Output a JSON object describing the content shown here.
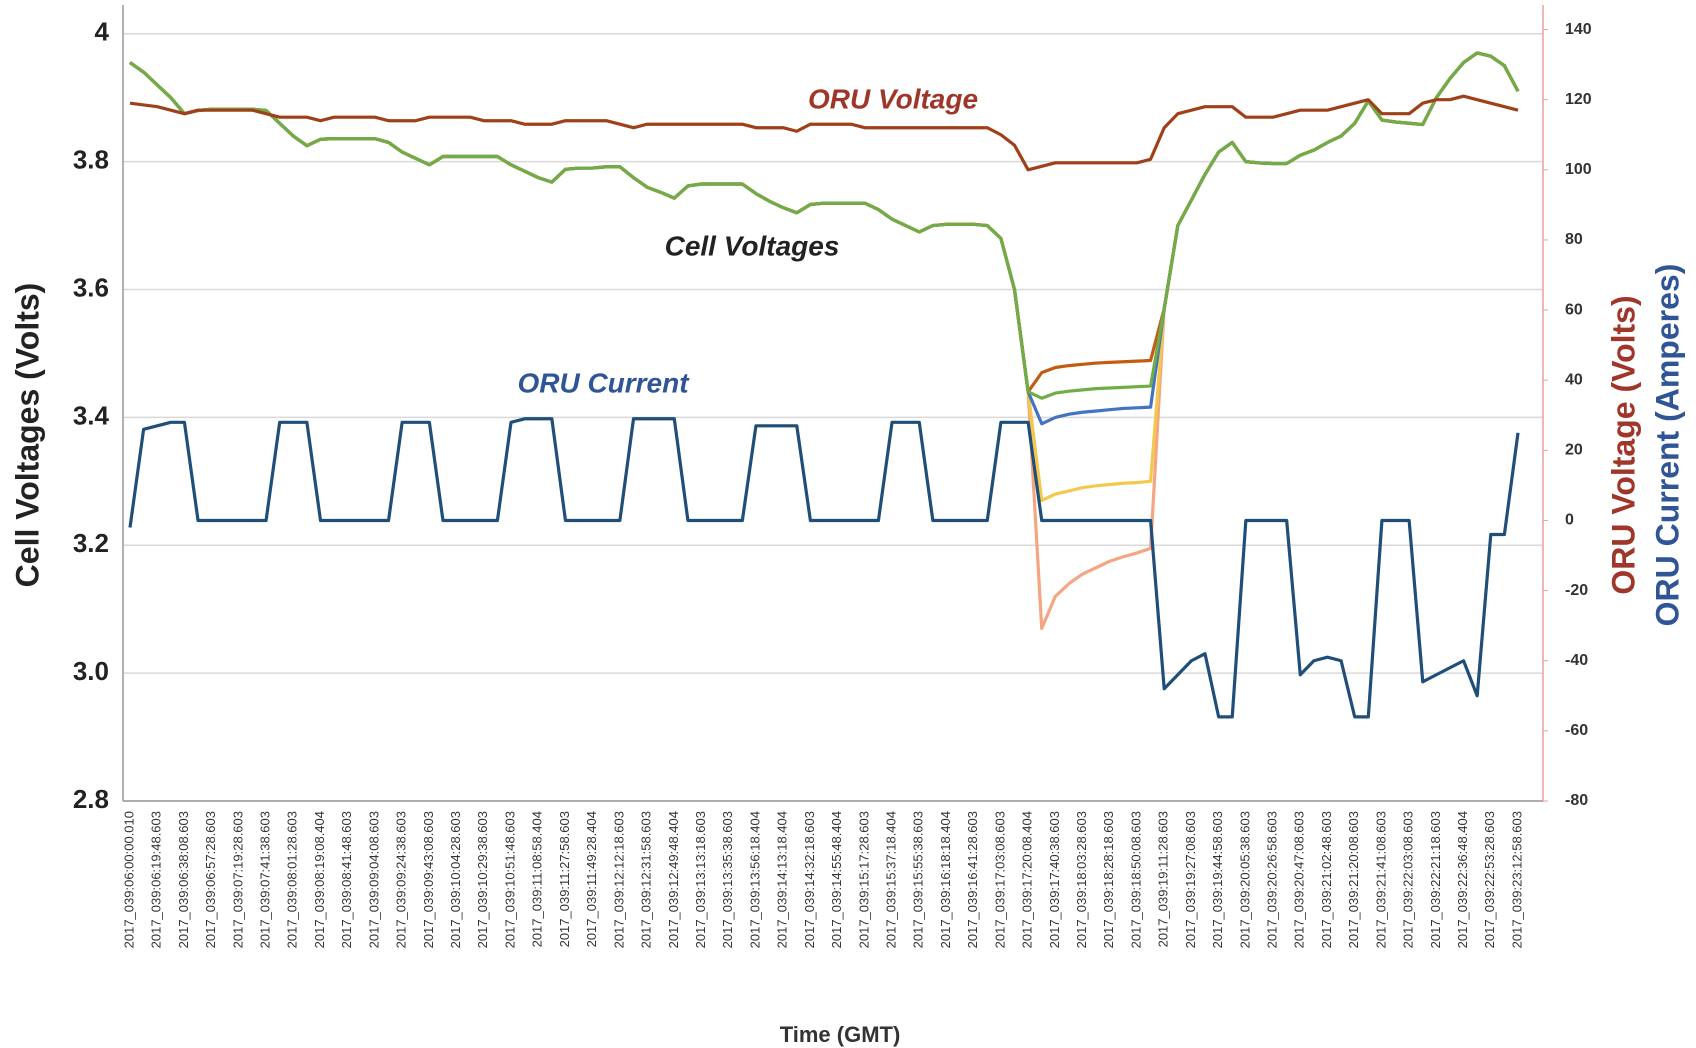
{
  "chart_data": {
    "type": "line",
    "x_label": "Time (GMT)",
    "y_label": "Cell Voltages (Volts)",
    "y2_labels": [
      "ORU Voltage (Volts)",
      "ORU Current (Amperes)"
    ],
    "annotations": [
      "ORU Voltage",
      "Cell Voltages",
      "ORU Current"
    ],
    "grid": true,
    "ylim": [
      2.8,
      4.045
    ],
    "yticks": [
      2.8,
      {
        "value": 3,
        "label": "3.0"
      },
      3.2,
      3.4,
      3.6,
      3.8,
      4
    ],
    "y2lim": [
      -80,
      147
    ],
    "y2ticks": [
      -80,
      -60,
      -40,
      -20,
      0,
      20,
      40,
      60,
      80,
      100,
      120,
      140
    ],
    "categories": [
      "2017_039:06:00:00.010",
      null,
      "2017_039:06:19:48.603",
      null,
      "2017_039:06:38:08.603",
      null,
      "2017_039:06:57:28.603",
      null,
      "2017_039:07:19:28.603",
      null,
      "2017_039:07:41:38.603",
      null,
      "2017_039:08:01:28.603",
      null,
      "2017_039:08:19:08.404",
      null,
      "2017_039:08:41:48.603",
      null,
      "2017_039:09:04:08.603",
      null,
      "2017_039:09:24:38.603",
      null,
      "2017_039:09:43:08.603",
      null,
      "2017_039:10:04:28.603",
      null,
      "2017_039:10:29:38.603",
      null,
      "2017_039:10:51:48.603",
      null,
      "2017_039:11:08:58.404",
      null,
      "2017_039:11:27:58.603",
      null,
      "2017_039:11:49:28.404",
      null,
      "2017_039:12:12:18.603",
      null,
      "2017_039:12:31:58.603",
      null,
      "2017_039:12:49:48.404",
      null,
      "2017_039:13:13:18.603",
      null,
      "2017_039:13:35:38.603",
      null,
      "2017_039:13:56:18.404",
      null,
      "2017_039:14:13:18.404",
      null,
      "2017_039:14:32:18.603",
      null,
      "2017_039:14:55:48.404",
      null,
      "2017_039:15:17:28.603",
      null,
      "2017_039:15:37:18.404",
      null,
      "2017_039:15:55:38.603",
      null,
      "2017_039:16:18:18.404",
      null,
      "2017_039:16:41:28.603",
      null,
      "2017_039:17:03:08.603",
      null,
      "2017_039:17:20:08.404",
      null,
      "2017_039:17:40:38.603",
      null,
      "2017_039:18:03:28.603",
      null,
      "2017_039:18:28:18.603",
      null,
      "2017_039:18:50:08.603",
      null,
      "2017_039:19:11:28.603",
      null,
      "2017_039:19:27:08.603",
      null,
      "2017_039:19:44:58.603",
      null,
      "2017_039:20:05:38.603",
      null,
      "2017_039:20:26:58.603",
      null,
      "2017_039:20:47:08.603",
      null,
      "2017_039:21:02:48.603",
      null,
      "2017_039:21:20:08.603",
      null,
      "2017_039:21:41:08.603",
      null,
      "2017_039:22:03:08.603",
      null,
      "2017_039:22:21:18.603",
      null,
      "2017_039:22:36:48.404",
      null,
      "2017_039:22:53:28.603",
      null,
      "2017_039:23:12:58.603"
    ],
    "series": [
      {
        "color": "#f4a582",
        "values": [
          3.955,
          3.94,
          3.92,
          3.9,
          3.875,
          3.88,
          3.882,
          3.882,
          3.882,
          3.882,
          3.88,
          3.86,
          3.84,
          3.825,
          3.835,
          3.836,
          3.836,
          3.836,
          3.836,
          3.83,
          3.815,
          3.805,
          3.795,
          3.808,
          3.808,
          3.808,
          3.808,
          3.808,
          3.795,
          3.785,
          3.775,
          3.768,
          3.788,
          3.79,
          3.79,
          3.792,
          3.792,
          3.775,
          3.76,
          3.752,
          3.743,
          3.762,
          3.765,
          3.765,
          3.765,
          3.765,
          3.75,
          3.738,
          3.728,
          3.72,
          3.733,
          3.735,
          3.735,
          3.735,
          3.735,
          3.725,
          3.71,
          3.7,
          3.69,
          3.7,
          3.702,
          3.702,
          3.702,
          3.7,
          3.68,
          3.6,
          3.44,
          3.07,
          3.12,
          3.14,
          3.155,
          3.165,
          3.175,
          3.182,
          3.188,
          3.195,
          3.57,
          3.7,
          3.74,
          3.78,
          3.815,
          3.83,
          3.8,
          3.798,
          3.797,
          3.797,
          3.81,
          3.818,
          3.83,
          3.84,
          3.86,
          3.895,
          3.865,
          3.862,
          3.86,
          3.858,
          3.9,
          3.93,
          3.955,
          3.97,
          3.965,
          3.95,
          3.91
        ]
      },
      {
        "color": "#f2c94c",
        "values": [
          3.955,
          3.94,
          3.92,
          3.9,
          3.875,
          3.88,
          3.882,
          3.882,
          3.882,
          3.882,
          3.88,
          3.86,
          3.84,
          3.825,
          3.835,
          3.836,
          3.836,
          3.836,
          3.836,
          3.83,
          3.815,
          3.805,
          3.795,
          3.808,
          3.808,
          3.808,
          3.808,
          3.808,
          3.795,
          3.785,
          3.775,
          3.768,
          3.788,
          3.79,
          3.79,
          3.792,
          3.792,
          3.775,
          3.76,
          3.752,
          3.743,
          3.762,
          3.765,
          3.765,
          3.765,
          3.765,
          3.75,
          3.738,
          3.728,
          3.72,
          3.733,
          3.735,
          3.735,
          3.735,
          3.735,
          3.725,
          3.71,
          3.7,
          3.69,
          3.7,
          3.702,
          3.702,
          3.702,
          3.7,
          3.68,
          3.6,
          3.44,
          3.27,
          3.28,
          3.285,
          3.29,
          3.293,
          3.295,
          3.297,
          3.298,
          3.3,
          3.57,
          3.7,
          3.74,
          3.78,
          3.815,
          3.83,
          3.8,
          3.798,
          3.797,
          3.797,
          3.81,
          3.818,
          3.83,
          3.84,
          3.86,
          3.895,
          3.865,
          3.862,
          3.86,
          3.858,
          3.9,
          3.93,
          3.955,
          3.97,
          3.965,
          3.95,
          3.91
        ]
      },
      {
        "color": "#4472c4",
        "values": [
          3.955,
          3.94,
          3.92,
          3.9,
          3.875,
          3.88,
          3.882,
          3.882,
          3.882,
          3.882,
          3.88,
          3.86,
          3.84,
          3.825,
          3.835,
          3.836,
          3.836,
          3.836,
          3.836,
          3.83,
          3.815,
          3.805,
          3.795,
          3.808,
          3.808,
          3.808,
          3.808,
          3.808,
          3.795,
          3.785,
          3.775,
          3.768,
          3.788,
          3.79,
          3.79,
          3.792,
          3.792,
          3.775,
          3.76,
          3.752,
          3.743,
          3.762,
          3.765,
          3.765,
          3.765,
          3.765,
          3.75,
          3.738,
          3.728,
          3.72,
          3.733,
          3.735,
          3.735,
          3.735,
          3.735,
          3.725,
          3.71,
          3.7,
          3.69,
          3.7,
          3.702,
          3.702,
          3.702,
          3.7,
          3.68,
          3.6,
          3.44,
          3.39,
          3.4,
          3.405,
          3.408,
          3.41,
          3.412,
          3.414,
          3.415,
          3.416,
          3.57,
          3.7,
          3.74,
          3.78,
          3.815,
          3.83,
          3.8,
          3.798,
          3.797,
          3.797,
          3.81,
          3.818,
          3.83,
          3.84,
          3.86,
          3.895,
          3.865,
          3.862,
          3.86,
          3.858,
          3.9,
          3.93,
          3.955,
          3.97,
          3.965,
          3.95,
          3.91
        ]
      },
      {
        "color": "#c55a11",
        "values": [
          3.955,
          3.94,
          3.92,
          3.9,
          3.875,
          3.88,
          3.882,
          3.882,
          3.882,
          3.882,
          3.88,
          3.86,
          3.84,
          3.825,
          3.835,
          3.836,
          3.836,
          3.836,
          3.836,
          3.83,
          3.815,
          3.805,
          3.795,
          3.808,
          3.808,
          3.808,
          3.808,
          3.808,
          3.795,
          3.785,
          3.775,
          3.768,
          3.788,
          3.79,
          3.79,
          3.792,
          3.792,
          3.775,
          3.76,
          3.752,
          3.743,
          3.762,
          3.765,
          3.765,
          3.765,
          3.765,
          3.75,
          3.738,
          3.728,
          3.72,
          3.733,
          3.735,
          3.735,
          3.735,
          3.735,
          3.725,
          3.71,
          3.7,
          3.69,
          3.7,
          3.702,
          3.702,
          3.702,
          3.7,
          3.68,
          3.6,
          3.44,
          3.47,
          3.478,
          3.481,
          3.483,
          3.485,
          3.486,
          3.487,
          3.488,
          3.489,
          3.57,
          3.7,
          3.74,
          3.78,
          3.815,
          3.83,
          3.8,
          3.798,
          3.797,
          3.797,
          3.81,
          3.818,
          3.83,
          3.84,
          3.86,
          3.895,
          3.865,
          3.862,
          3.86,
          3.858,
          3.9,
          3.93,
          3.955,
          3.97,
          3.965,
          3.95,
          3.91
        ]
      },
      {
        "color": "#70ad47",
        "values": [
          3.955,
          3.94,
          3.92,
          3.9,
          3.875,
          3.88,
          3.882,
          3.882,
          3.882,
          3.882,
          3.88,
          3.86,
          3.84,
          3.825,
          3.835,
          3.836,
          3.836,
          3.836,
          3.836,
          3.83,
          3.815,
          3.805,
          3.795,
          3.808,
          3.808,
          3.808,
          3.808,
          3.808,
          3.795,
          3.785,
          3.775,
          3.768,
          3.788,
          3.79,
          3.79,
          3.792,
          3.792,
          3.775,
          3.76,
          3.752,
          3.743,
          3.762,
          3.765,
          3.765,
          3.765,
          3.765,
          3.75,
          3.738,
          3.728,
          3.72,
          3.733,
          3.735,
          3.735,
          3.735,
          3.735,
          3.725,
          3.71,
          3.7,
          3.69,
          3.7,
          3.702,
          3.702,
          3.702,
          3.7,
          3.68,
          3.6,
          3.44,
          3.43,
          3.438,
          3.441,
          3.443,
          3.445,
          3.446,
          3.447,
          3.448,
          3.449,
          3.57,
          3.7,
          3.74,
          3.78,
          3.815,
          3.83,
          3.8,
          3.798,
          3.797,
          3.797,
          3.81,
          3.818,
          3.83,
          3.84,
          3.86,
          3.895,
          3.865,
          3.862,
          3.86,
          3.858,
          3.9,
          3.93,
          3.955,
          3.97,
          3.965,
          3.95,
          3.91
        ]
      },
      {
        "name": "ORU Voltage",
        "axis": "y2",
        "color": "#a0401a",
        "values": [
          119,
          118.5,
          118,
          117,
          116,
          117,
          117,
          117,
          117,
          117,
          116,
          115,
          115,
          115,
          114,
          115,
          115,
          115,
          115,
          114,
          114,
          114,
          115,
          115,
          115,
          115,
          114,
          114,
          114,
          113,
          113,
          113,
          114,
          114,
          114,
          114,
          113,
          112,
          113,
          113,
          113,
          113,
          113,
          113,
          113,
          113,
          112,
          112,
          112,
          111,
          113,
          113,
          113,
          113,
          112,
          112,
          112,
          112,
          112,
          112,
          112,
          112,
          112,
          112,
          110,
          107,
          100,
          101,
          102,
          102,
          102,
          102,
          102,
          102,
          102,
          103,
          112,
          116,
          117,
          118,
          118,
          118,
          115,
          115,
          115,
          116,
          117,
          117,
          117,
          118,
          119,
          120,
          116,
          116,
          116,
          119,
          120,
          120,
          121,
          120,
          119,
          118,
          117
        ]
      },
      {
        "name": "ORU Current",
        "axis": "y2",
        "color": "#1f4e79",
        "values": [
          -2,
          26,
          27,
          28,
          28,
          0,
          0,
          0,
          0,
          0,
          0,
          28,
          28,
          28,
          0,
          0,
          0,
          0,
          0,
          0,
          28,
          28,
          28,
          0,
          0,
          0,
          0,
          0,
          28,
          29,
          29,
          29,
          0,
          0,
          0,
          0,
          0,
          29,
          29,
          29,
          29,
          0,
          0,
          0,
          0,
          0,
          27,
          27,
          27,
          27,
          0,
          0,
          0,
          0,
          0,
          0,
          28,
          28,
          28,
          0,
          0,
          0,
          0,
          0,
          28,
          28,
          28,
          0,
          0,
          0,
          0,
          0,
          0,
          0,
          0,
          0,
          -48,
          -44,
          -40,
          -38,
          -56,
          -56,
          0,
          0,
          0,
          0,
          -44,
          -40,
          -39,
          -40,
          -56,
          -56,
          0,
          0,
          0,
          -46,
          -44,
          -42,
          -40,
          -50,
          -4,
          -4,
          25
        ]
      }
    ]
  }
}
